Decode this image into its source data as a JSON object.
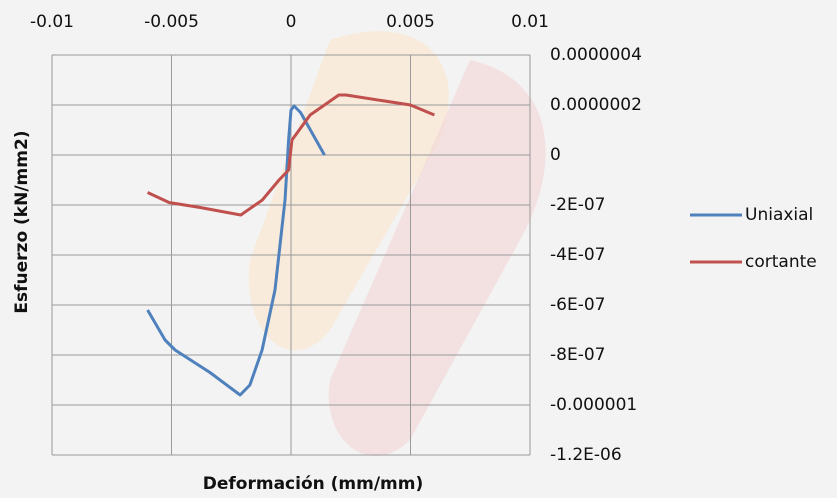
{
  "chart_data": {
    "type": "line",
    "x_label": "Deformación (mm/mm)",
    "y_label": "Esfuerzo (kN/mm2)",
    "xlim": [
      -0.01,
      0.01
    ],
    "xticks": [
      -0.01,
      -0.005,
      0,
      0.005,
      0.01
    ],
    "ylim": [
      -1.2e-06,
      4e-07
    ],
    "yticks": [
      {
        "value": 4e-07,
        "label": "0.0000004"
      },
      {
        "value": 2e-07,
        "label": "0.0000002"
      },
      0,
      {
        "value": -2e-07,
        "label": "-2E-07"
      },
      {
        "value": -4e-07,
        "label": "-4E-07"
      },
      {
        "value": -6e-07,
        "label": "-6E-07"
      },
      {
        "value": -8e-07,
        "label": "-8E-07"
      },
      {
        "value": -1e-06,
        "label": "-0.000001"
      },
      {
        "value": -1.2e-06,
        "label": "-1.2E-06"
      }
    ],
    "grid": true,
    "legend": "right",
    "series": [
      {
        "name": "Uniaxial",
        "color": "#4f81bd",
        "x": [
          -0.006,
          -0.00527,
          -0.00485,
          -0.00339,
          -0.00213,
          -0.00172,
          -0.00121,
          -0.00067,
          -0.00025,
          -0.0001,
          0,
          0.00013,
          0.0004,
          0.0014
        ],
        "values": [
          -6.2e-07,
          -7.4e-07,
          -7.8e-07,
          -8.7e-07,
          -9.6e-07,
          -9.2e-07,
          -7.8e-07,
          -5.4e-07,
          -1.8e-07,
          6e-08,
          1.8e-07,
          1.96e-07,
          1.7e-07,
          0
        ]
      },
      {
        "name": "cortante",
        "color": "#c0504d",
        "x": [
          -0.006,
          -0.0051,
          -0.0038,
          -0.0021,
          -0.0012,
          -0.0005,
          -0.0001,
          4e-05,
          0.0008,
          0.002,
          0.0023,
          0.005,
          0.006
        ],
        "values": [
          -1.5e-07,
          -1.9e-07,
          -2.1e-07,
          -2.4e-07,
          -1.8e-07,
          -1e-07,
          -6e-08,
          6e-08,
          1.6e-07,
          2.4e-07,
          2.4e-07,
          2e-07,
          1.6e-07
        ]
      }
    ]
  }
}
